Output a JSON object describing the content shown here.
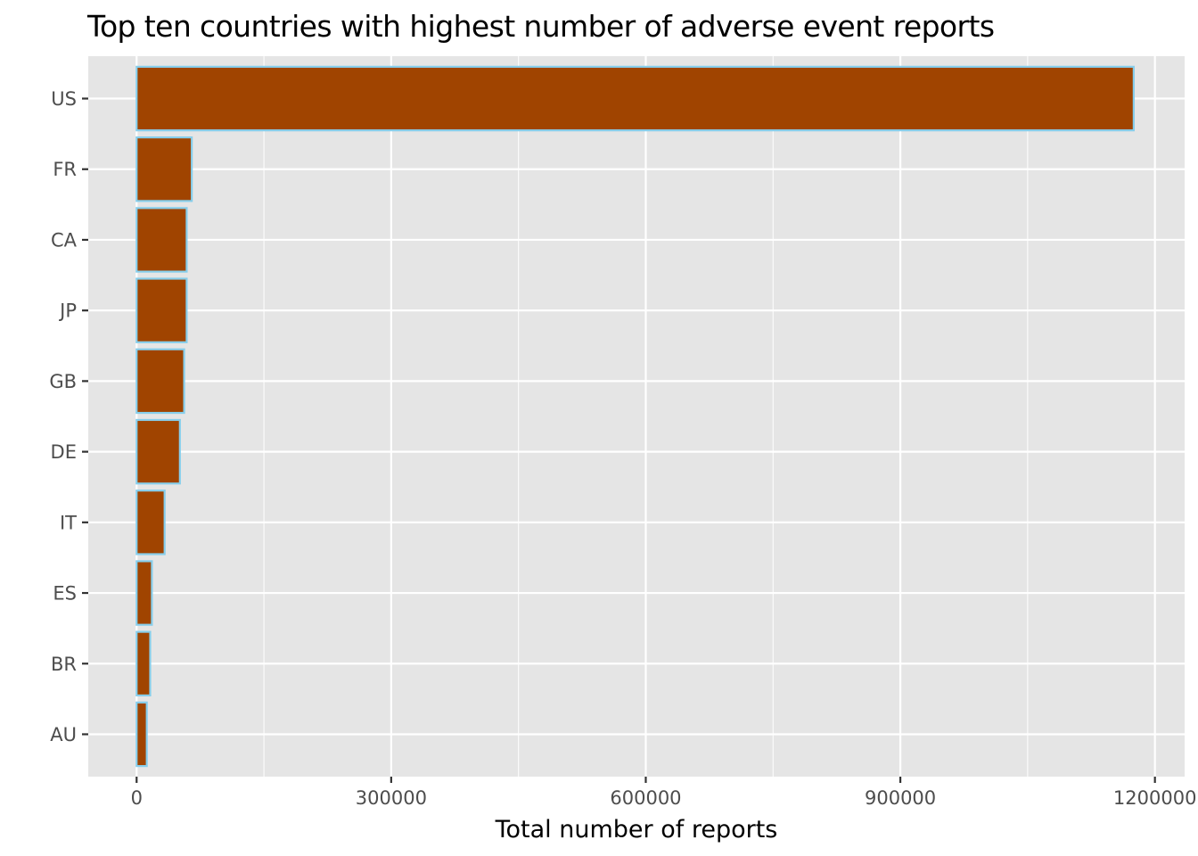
{
  "chart_data": {
    "type": "bar",
    "orientation": "horizontal",
    "title": "Top ten countries with highest number of adverse event reports",
    "xlabel": "Total number of reports",
    "ylabel": "",
    "categories": [
      "US",
      "FR",
      "CA",
      "JP",
      "GB",
      "DE",
      "IT",
      "ES",
      "BR",
      "AU"
    ],
    "values": [
      1175000,
      65000,
      59000,
      59000,
      56000,
      51000,
      33000,
      18000,
      16000,
      12000
    ],
    "xlim": [
      -57000,
      1235000
    ],
    "x_ticks": [
      0,
      300000,
      600000,
      900000,
      1200000
    ],
    "x_tick_labels": [
      "0",
      "300000",
      "600000",
      "900000",
      "1200000"
    ],
    "grid": true,
    "legend": "none",
    "colors": {
      "bar_fill": "#A04400",
      "bar_outline": "#87CEEB",
      "panel_background": "#E5E5E5",
      "grid": "#FFFFFF"
    }
  }
}
